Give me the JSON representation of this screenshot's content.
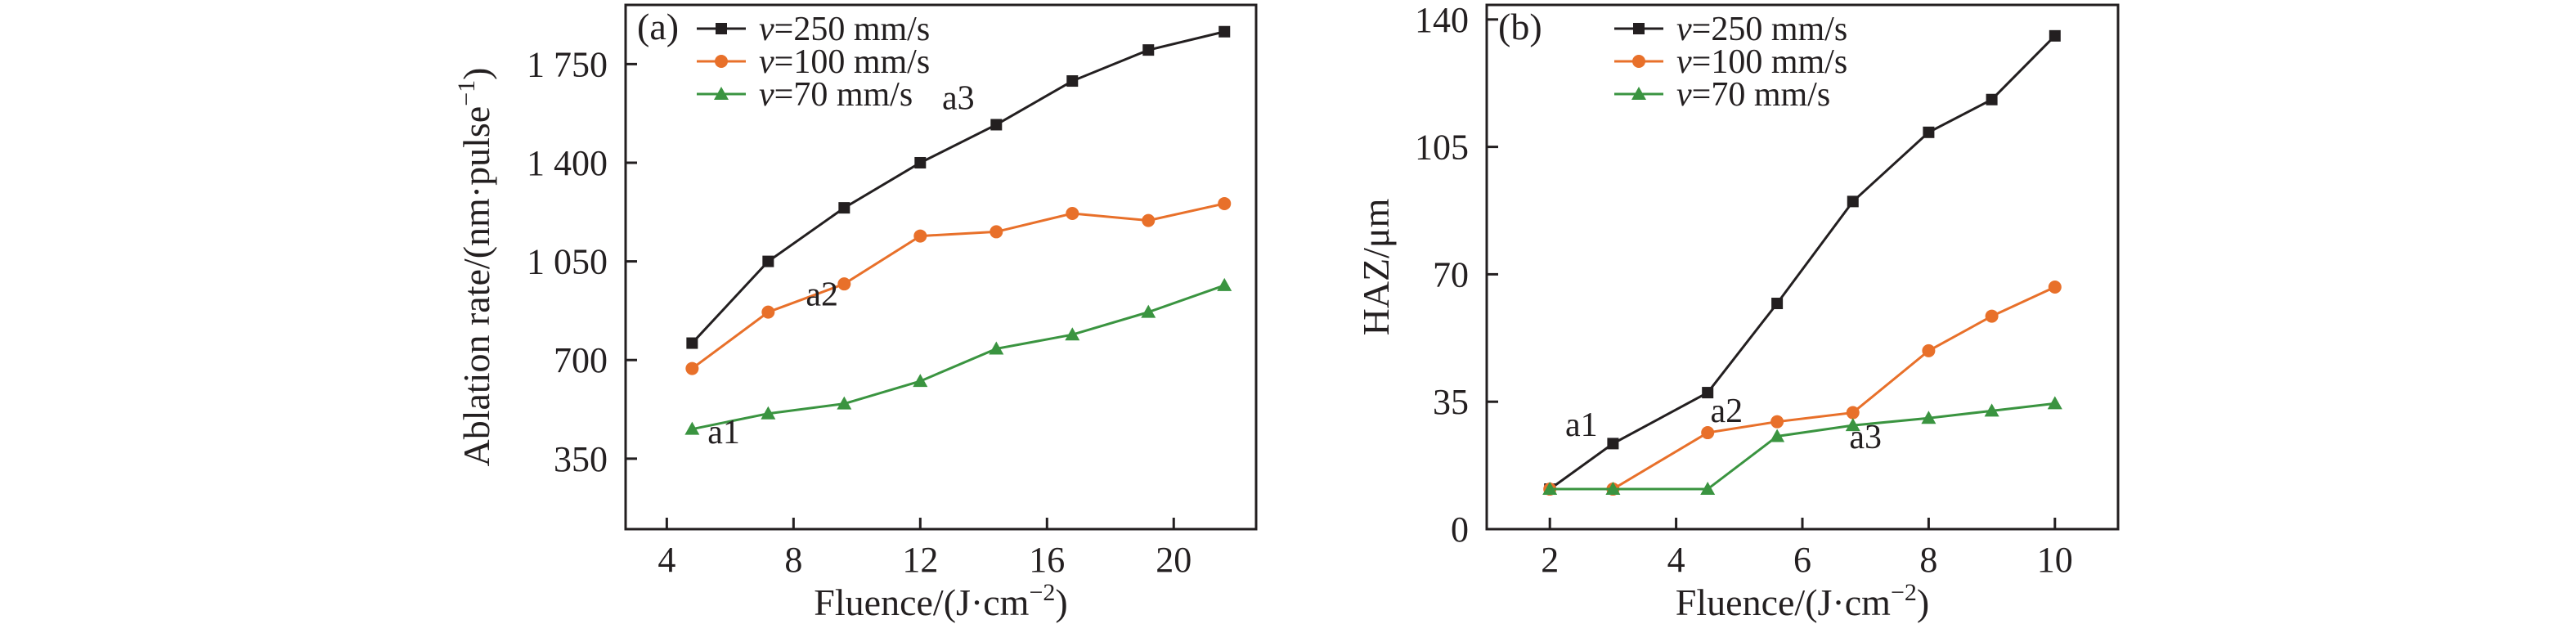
{
  "chart_data": [
    {
      "type": "line",
      "panel_label": "(a)",
      "xlabel": "Fluence/(J·cm",
      "xlabel_sup": "−2",
      "xlabel_end": ")",
      "ylabel": "Ablation rate/(nm·pulse",
      "ylabel_sup": "−1",
      "ylabel_end": ")",
      "xlim": [
        2.7,
        22.6
      ],
      "ylim": [
        100,
        1960
      ],
      "xticks": [
        4,
        8,
        12,
        16,
        20
      ],
      "xtick_labels": [
        "4",
        "8",
        "12",
        "16",
        "20"
      ],
      "yticks": [
        350,
        700,
        1050,
        1400,
        1750
      ],
      "ytick_labels": [
        "350",
        "700",
        "1 050",
        "1 400",
        "1 750"
      ],
      "grid": false,
      "legend_position": "top-left",
      "series": [
        {
          "name": "v=250 mm/s",
          "legend_var": "v",
          "legend_rest": "=250 mm/s",
          "color": "#231f20",
          "marker": "square",
          "x": [
            4.8,
            7.2,
            9.6,
            12.0,
            14.4,
            16.8,
            19.2,
            21.6
          ],
          "y": [
            760,
            1050,
            1240,
            1400,
            1535,
            1690,
            1800,
            1865
          ]
        },
        {
          "name": "v=100 mm/s",
          "legend_var": "v",
          "legend_rest": "=100 mm/s",
          "color": "#e8702a",
          "marker": "circle",
          "x": [
            4.8,
            7.2,
            9.6,
            12.0,
            14.4,
            16.8,
            19.2,
            21.6
          ],
          "y": [
            670,
            870,
            970,
            1140,
            1155,
            1220,
            1195,
            1255
          ]
        },
        {
          "name": "v=70 mm/s",
          "legend_var": "v",
          "legend_rest": "=70 mm/s",
          "color": "#3a9440",
          "marker": "triangle",
          "x": [
            4.8,
            7.2,
            9.6,
            12.0,
            14.4,
            16.8,
            19.2,
            21.6
          ],
          "y": [
            455,
            510,
            545,
            625,
            740,
            790,
            870,
            965
          ]
        }
      ],
      "annotations": [
        {
          "text": "a1",
          "x": 5.8,
          "y": 405
        },
        {
          "text": "a2",
          "x": 8.9,
          "y": 893
        },
        {
          "text": "a3",
          "x": 13.2,
          "y": 1590
        }
      ]
    },
    {
      "type": "line",
      "panel_label": "(b)",
      "xlabel": "Fluence/(J·cm",
      "xlabel_sup": "−2",
      "xlabel_end": ")",
      "ylabel": "HAZ/μm",
      "xlim": [
        1.0,
        11.0
      ],
      "ylim": [
        0,
        144
      ],
      "xticks": [
        2,
        4,
        6,
        8,
        10
      ],
      "xtick_labels": [
        "2",
        "4",
        "6",
        "8",
        "10"
      ],
      "yticks": [
        0,
        35,
        70,
        105,
        140
      ],
      "ytick_labels": [
        "0",
        "35",
        "70",
        "105",
        "140"
      ],
      "grid": false,
      "legend_position": "top-left",
      "series": [
        {
          "name": "v=250 mm/s",
          "legend_var": "v",
          "legend_rest": "=250 mm/s",
          "color": "#231f20",
          "marker": "square",
          "x": [
            2,
            3,
            4.5,
            5.6,
            6.8,
            8,
            9,
            10
          ],
          "y": [
            11,
            23.5,
            37.5,
            62,
            90,
            109,
            118,
            135.5
          ]
        },
        {
          "name": "v=100 mm/s",
          "legend_var": "v",
          "legend_rest": "=100 mm/s",
          "color": "#e8702a",
          "marker": "circle",
          "x": [
            2,
            3,
            4.5,
            5.6,
            6.8,
            8,
            9,
            10
          ],
          "y": [
            11,
            11,
            26.5,
            29.5,
            32,
            49,
            58.5,
            66.5
          ]
        },
        {
          "name": "v=70 mm/s",
          "legend_var": "v",
          "legend_rest": "=70 mm/s",
          "color": "#3a9440",
          "marker": "triangle",
          "x": [
            2,
            3,
            4.5,
            5.6,
            6.8,
            8,
            9,
            10
          ],
          "y": [
            11,
            11,
            11,
            25.5,
            28.5,
            30.5,
            32.5,
            34.5
          ]
        }
      ],
      "annotations": [
        {
          "text": "a1",
          "x": 2.5,
          "y": 25.6
        },
        {
          "text": "a2",
          "x": 4.8,
          "y": 29.4
        },
        {
          "text": "a3",
          "x": 7.0,
          "y": 22.2
        }
      ]
    }
  ]
}
